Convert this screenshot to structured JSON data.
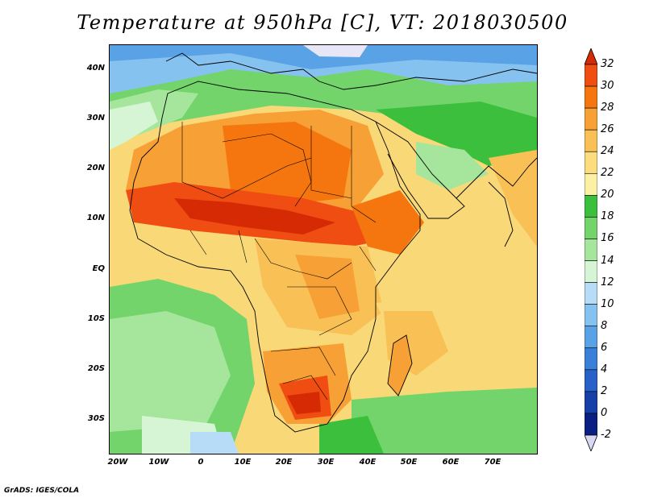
{
  "title": "Temperature at 950hPa [C], VT: 2018030500",
  "lat_labels": [
    "40N",
    "30N",
    "20N",
    "10N",
    "EQ",
    "10S",
    "20S",
    "30S"
  ],
  "lon_labels": [
    "20W",
    "10W",
    "0",
    "10E",
    "20E",
    "30E",
    "40E",
    "50E",
    "60E",
    "70E"
  ],
  "colorbar": {
    "levels": [
      "32",
      "30",
      "28",
      "26",
      "24",
      "22",
      "20",
      "18",
      "16",
      "14",
      "12",
      "10",
      "8",
      "6",
      "4",
      "2",
      "0",
      "-2"
    ],
    "colors": [
      "#d62a05",
      "#f04d12",
      "#f5760f",
      "#f7a035",
      "#f9c055",
      "#fbdc7e",
      "#fbf0a4",
      "#3cbf3c",
      "#72d46a",
      "#a6e69c",
      "#d5f5d5",
      "#b6dcf7",
      "#86c2f0",
      "#5aa2e6",
      "#3a7fd8",
      "#2660c8",
      "#1640a8",
      "#0b1f82",
      "#d8d8f4"
    ]
  },
  "credit": "GrADS: IGES/COLA"
}
